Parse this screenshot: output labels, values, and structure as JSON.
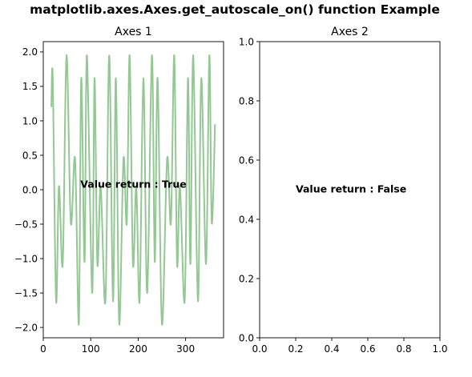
{
  "figure": {
    "title": "matplotlib.axes.Axes.get_autoscale_on() function Example"
  },
  "chart_data": [
    {
      "type": "line",
      "title": "Axes 1",
      "xlabel": "",
      "ylabel": "",
      "xlim": [
        0,
        380
      ],
      "ylim": [
        -2.15,
        2.15
      ],
      "x_ticks": [
        0,
        100,
        200,
        300
      ],
      "x_tick_labels": [
        "0",
        "100",
        "200",
        "300"
      ],
      "y_ticks": [
        -2.0,
        -1.5,
        -1.0,
        -0.5,
        0.0,
        0.5,
        1.0,
        1.5,
        2.0
      ],
      "y_tick_labels": [
        "−2.0",
        "−1.5",
        "−1.0",
        "−0.5",
        "0.0",
        "0.5",
        "1.0",
        "1.5",
        "2.0"
      ],
      "grid": false,
      "series": [
        {
          "color": "#93c894",
          "x": [
            17,
            20,
            27,
            33,
            41,
            49,
            58,
            67,
            75,
            80,
            87,
            92,
            103,
            108,
            114,
            121,
            131,
            139,
            147,
            153,
            160,
            169,
            176,
            182,
            189,
            196,
            203,
            211,
            219,
            229,
            235,
            241,
            250,
            261,
            269,
            276,
            282,
            288,
            298,
            305,
            310,
            316,
            326,
            333,
            343,
            350,
            355,
            362
          ],
          "y": [
            1.2,
            1.62,
            -1.62,
            0.05,
            -1.08,
            1.95,
            -0.48,
            0.45,
            -1.95,
            1.62,
            -1.05,
            1.95,
            -1.5,
            1.62,
            -1.08,
            0.05,
            -1.62,
            1.95,
            -1.62,
            1.62,
            -1.95,
            0.45,
            -0.48,
            1.95,
            -1.08,
            0.05,
            -1.62,
            1.62,
            -1.5,
            1.95,
            -1.05,
            1.62,
            -1.95,
            0.45,
            -0.48,
            1.95,
            -1.08,
            0.05,
            -1.62,
            1.62,
            -1.08,
            1.95,
            -1.62,
            1.62,
            -1.08,
            1.95,
            -0.48,
            0.95
          ]
        }
      ],
      "annotation": {
        "text": "Value return : True",
        "x": 190,
        "y": 0.07
      }
    },
    {
      "type": "line",
      "title": "Axes 2",
      "xlabel": "",
      "ylabel": "",
      "xlim": [
        0.0,
        1.0
      ],
      "ylim": [
        0.0,
        1.0
      ],
      "x_ticks": [
        0.0,
        0.2,
        0.4,
        0.6,
        0.8,
        1.0
      ],
      "x_tick_labels": [
        "0.0",
        "0.2",
        "0.4",
        "0.6",
        "0.8",
        "1.0"
      ],
      "y_ticks": [
        0.0,
        0.2,
        0.4,
        0.6,
        0.8,
        1.0
      ],
      "y_tick_labels": [
        "0.0",
        "0.2",
        "0.4",
        "0.6",
        "0.8",
        "1.0"
      ],
      "grid": false,
      "series": [],
      "annotation": {
        "text": "Value return : False",
        "x": 0.2,
        "y": 0.5
      }
    }
  ]
}
